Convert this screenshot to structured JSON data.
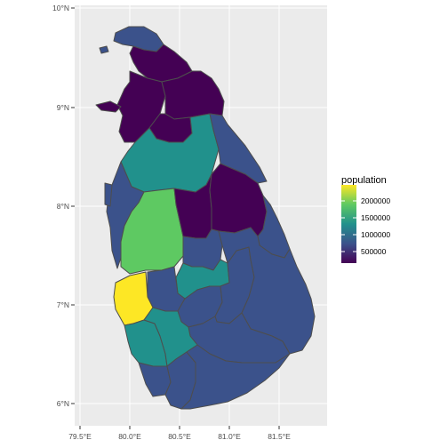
{
  "map": {
    "x_ticks": [
      "79.5°E",
      "80.0°E",
      "80.5°E",
      "81.0°E",
      "81.5°E"
    ],
    "y_ticks": [
      "6°N",
      "7°N",
      "8°N",
      "9°N",
      "10°N"
    ],
    "legend": {
      "title": "population",
      "labels": [
        "2000000",
        "1500000",
        "1000000",
        "500000"
      ]
    },
    "colors": {
      "panel_bg": "#ebebeb",
      "grid": "#ffffff",
      "border": "#4d4d4d",
      "scale_low": "#440154",
      "scale_mid_low": "#3b528b",
      "scale_mid": "#21918c",
      "scale_mid_high": "#5ec962",
      "scale_high": "#fde725"
    }
  }
}
